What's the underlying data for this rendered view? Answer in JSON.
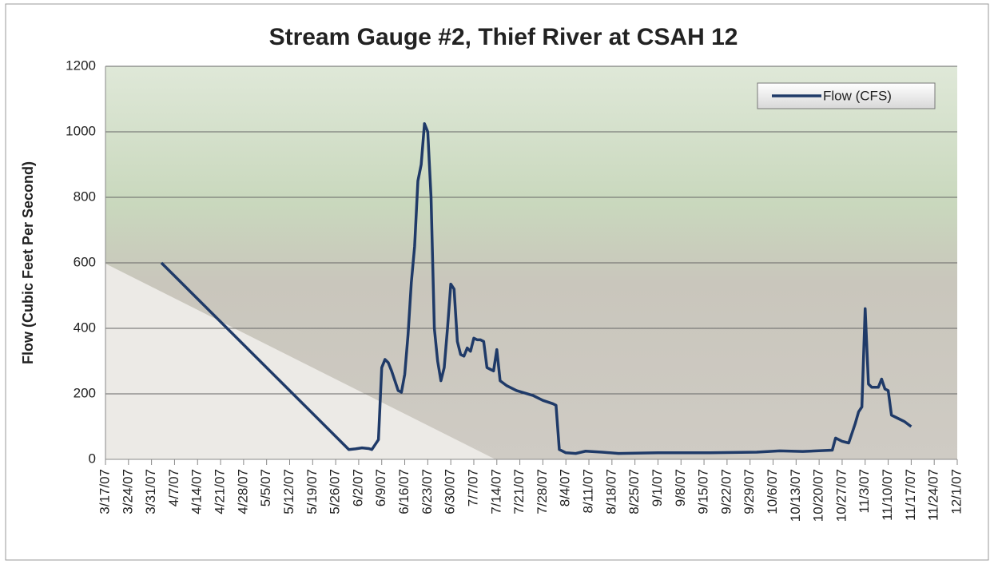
{
  "chart_data": {
    "type": "line",
    "title": "Stream Gauge #2, Thief River at CSAH 12",
    "y_label": "Flow (Cubic Feet Per Second)",
    "legend": "top-right",
    "grid": true,
    "xlim": [
      "3/17/07",
      "12/1/07"
    ],
    "xticks": [
      "3/17/07",
      "3/24/07",
      "3/31/07",
      "4/7/07",
      "4/14/07",
      "4/21/07",
      "4/28/07",
      "5/5/07",
      "5/12/07",
      "5/19/07",
      "5/26/07",
      "6/2/07",
      "6/9/07",
      "6/16/07",
      "6/23/07",
      "6/30/07",
      "7/7/07",
      "7/14/07",
      "7/21/07",
      "7/28/07",
      "8/4/07",
      "8/11/07",
      "8/18/07",
      "8/25/07",
      "9/1/07",
      "9/8/07",
      "9/15/07",
      "9/22/07",
      "9/29/07",
      "10/6/07",
      "10/13/07",
      "10/20/07",
      "10/27/07",
      "11/3/07",
      "11/10/07",
      "11/17/07",
      "11/24/07",
      "12/1/07"
    ],
    "ylim": [
      0,
      1200
    ],
    "yticks": [
      0,
      200,
      400,
      600,
      800,
      1000,
      1200
    ],
    "x": [
      "4/3/07",
      "5/30/07",
      "6/1/07",
      "6/3/07",
      "6/5/07",
      "6/6/07",
      "6/7/07",
      "6/8/07",
      "6/9/07",
      "6/10/07",
      "6/11/07",
      "6/12/07",
      "6/13/07",
      "6/14/07",
      "6/15/07",
      "6/16/07",
      "6/17/07",
      "6/18/07",
      "6/19/07",
      "6/20/07",
      "6/21/07",
      "6/22/07",
      "6/23/07",
      "6/24/07",
      "6/25/07",
      "6/26/07",
      "6/27/07",
      "6/28/07",
      "6/29/07",
      "6/30/07",
      "7/1/07",
      "7/2/07",
      "7/3/07",
      "7/4/07",
      "7/5/07",
      "7/6/07",
      "7/7/07",
      "7/8/07",
      "7/9/07",
      "7/10/07",
      "7/11/07",
      "7/12/07",
      "7/13/07",
      "7/14/07",
      "7/15/07",
      "7/17/07",
      "7/20/07",
      "7/25/07",
      "7/28/07",
      "7/31/07",
      "8/1/07",
      "8/2/07",
      "8/4/07",
      "8/7/07",
      "8/10/07",
      "8/15/07",
      "8/20/07",
      "9/1/07",
      "9/15/07",
      "10/1/07",
      "10/8/07",
      "10/15/07",
      "10/24/07",
      "10/25/07",
      "10/27/07",
      "10/29/07",
      "10/31/07",
      "11/1/07",
      "11/2/07",
      "11/3/07",
      "11/4/07",
      "11/5/07",
      "11/7/07",
      "11/8/07",
      "11/9/07",
      "11/10/07",
      "11/11/07",
      "11/13/07",
      "11/15/07",
      "11/17/07"
    ],
    "series": [
      {
        "name": "Flow (CFS)",
        "color": "#1f3a68",
        "values": [
          600,
          30,
          32,
          35,
          33,
          30,
          45,
          60,
          280,
          305,
          295,
          270,
          240,
          210,
          205,
          260,
          380,
          540,
          650,
          850,
          900,
          1025,
          1000,
          800,
          400,
          300,
          240,
          280,
          400,
          535,
          520,
          360,
          320,
          315,
          340,
          330,
          370,
          365,
          365,
          360,
          280,
          275,
          270,
          335,
          240,
          225,
          210,
          195,
          180,
          170,
          165,
          30,
          20,
          18,
          25,
          22,
          18,
          20,
          20,
          22,
          26,
          24,
          28,
          65,
          55,
          50,
          110,
          145,
          160,
          460,
          230,
          220,
          220,
          245,
          215,
          210,
          135,
          125,
          115,
          100
        ]
      }
    ]
  }
}
